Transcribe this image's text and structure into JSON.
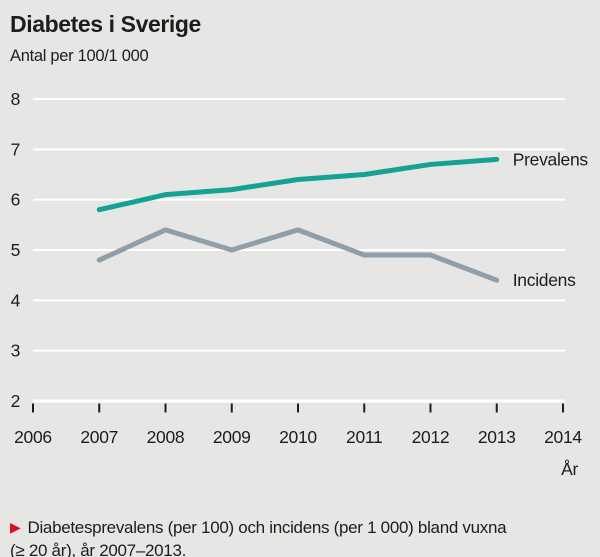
{
  "header": {
    "title": "Diabetes i Sverige",
    "subtitle": "Antal per 100/1 000"
  },
  "chart_data": {
    "type": "line",
    "x": [
      2007,
      2008,
      2009,
      2010,
      2011,
      2012,
      2013
    ],
    "series": [
      {
        "name": "Prevalens",
        "color": "#14a294",
        "values": [
          5.8,
          6.1,
          6.2,
          6.4,
          6.5,
          6.7,
          6.8
        ]
      },
      {
        "name": "Incidens",
        "color": "#8f9faa",
        "values": [
          4.8,
          5.4,
          5.0,
          5.4,
          4.9,
          4.9,
          4.4
        ]
      }
    ],
    "title": "Diabetes i Sverige",
    "ylabel": "Antal per 100/1 000",
    "xlabel": "År",
    "x_ticks": [
      "2006",
      "2007",
      "2008",
      "2009",
      "2010",
      "2011",
      "2012",
      "2013",
      "2014"
    ],
    "y_ticks": [
      "2",
      "3",
      "4",
      "5",
      "6",
      "7",
      "8"
    ],
    "xlim": [
      2006,
      2014
    ],
    "ylim": [
      2,
      8
    ],
    "grid": true,
    "gridline_color": "#ffffff",
    "axis_text_color": "#1d1d1b",
    "background": "#e6e6e4",
    "legend_position": "end-of-line-labels"
  },
  "caption": {
    "marker": "▶",
    "marker_color": "#d6131c",
    "line1": "Diabetesprevalens (per 100) och incidens (per 1 000) bland vuxna",
    "line2": "(≥ 20 år), år 2007–2013."
  }
}
